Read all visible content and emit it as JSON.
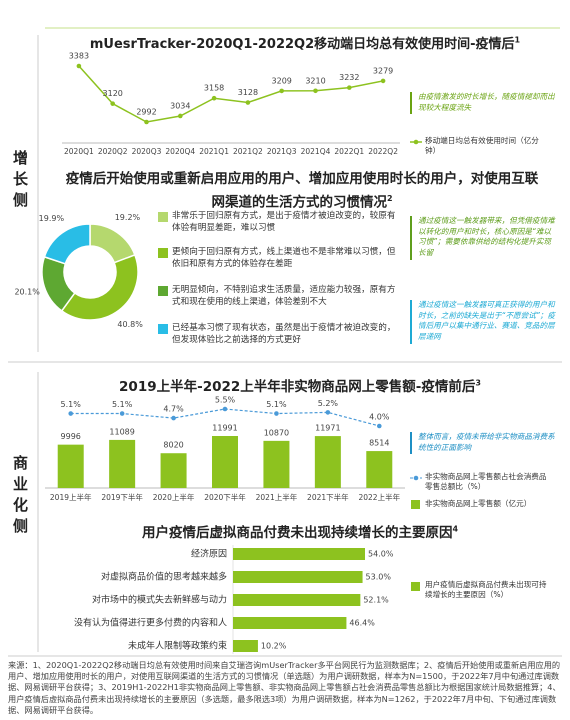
{
  "sidebar": [
    "增长侧",
    "商业化侧"
  ],
  "chart_data": [
    {
      "type": "line",
      "title": "mUesrTracker-2020Q1-2022Q2移动端日均总有效使用时间-疫情后",
      "title_note": "1",
      "categories": [
        "2020Q1",
        "2020Q2",
        "2020Q3",
        "2020Q4",
        "2021Q1",
        "2021Q2",
        "2021Q3",
        "2021Q4",
        "2022Q1",
        "2022Q2"
      ],
      "series": [
        {
          "name": "移动端日均总有效使用时间（亿分钟）",
          "color": "#8dc21f",
          "values": [
            3383,
            3120,
            2992,
            3034,
            3158,
            3128,
            3209,
            3210,
            3232,
            3279
          ]
        }
      ],
      "annotation": "由疫情激发的时长增长，随疫情褪却而出现较大程度流失"
    },
    {
      "type": "pie",
      "title": "疫情后开始使用或重新启用应用的用户、增加应用使用时长的用户，对使用互联网渠道的生活方式的习惯情况",
      "title_note": "2",
      "categories": [
        "非常乐于回归原有方式，是出于疫情才被迫改变的，较原有体验有明显差距，难以习惯",
        "更倾向于回归原有方式，线上渠道也不是非常难以习惯，但依旧和原有方式的体验存在差距",
        "无明显倾向，不特别追求生活质量，适应能力较强，原有方式和现在使用的线上渠道，体验差别不大",
        "已经基本习惯了现有状态，虽然是出于疫情才被迫改变的，但发现体验比之前选择的方式更好"
      ],
      "values": [
        19.2,
        40.8,
        20.1,
        19.9
      ],
      "value_labels": [
        "19.2%",
        "40.8%",
        "20.1%",
        "19.9%"
      ],
      "colors": [
        "#b5d86e",
        "#8dc21f",
        "#5ea832",
        "#29bde6"
      ],
      "annotations": [
        "通过疫情这一触发器带来，但凭借疫情难以转化的用户和时长，核心原因是“难以习惯”；需要依靠供给的结构化提升实现长留",
        "通过疫情这一触发器可真正获得的用户和时长，之前的缺失是出于“不愿尝试”；疫情后用户以集中通行业、赛道、竞品的层层递网"
      ]
    },
    {
      "type": "combo",
      "title": "2019上半年-2022上半年非实物商品网上零售额-疫情前后",
      "title_note": "3",
      "categories": [
        "2019上半年",
        "2019下半年",
        "2020上半年",
        "2020下半年",
        "2021上半年",
        "2021下半年",
        "2022上半年"
      ],
      "series": [
        {
          "name": "非实物商品网上零售额占社会消费品零售总额比（%）",
          "type": "line",
          "color": "#4a9ad8",
          "values": [
            5.1,
            5.1,
            4.7,
            5.5,
            5.1,
            5.2,
            4.0
          ],
          "value_labels": [
            "5.1%",
            "5.1%",
            "4.7%",
            "5.5%",
            "5.1%",
            "5.2%",
            "4.0%"
          ]
        },
        {
          "name": "非实物商品网上零售额（亿元）",
          "type": "bar",
          "color": "#8dc21f",
          "values": [
            9996,
            11089,
            8020,
            11991,
            10870,
            11971,
            8514
          ]
        }
      ],
      "annotation": "整体而言，疫情未带给非实物商品消费系统性的正面影响"
    },
    {
      "type": "hbar",
      "title": "用户疫情后虚拟商品付费未出现持续增长的主要原因",
      "title_note": "4",
      "categories": [
        "经济原因",
        "对虚拟商品价值的思考越来越多",
        "对市场中的模式失去新鲜感与动力",
        "没有认为值得进行更多付费的内容和人",
        "未成年人限制等政策约束"
      ],
      "series": [
        {
          "name": "用户疫情后虚拟商品付费未出现可持续增长的主要原因（%）",
          "color": "#8dc21f",
          "values": [
            54.0,
            53.0,
            52.1,
            46.4,
            10.2
          ],
          "value_labels": [
            "54.0%",
            "53.0%",
            "52.1%",
            "46.4%",
            "10.2%"
          ]
        }
      ]
    }
  ],
  "source": "来源：1、2020Q1-2022Q2移动端日均总有效使用时间来自艾瑞咨询mUserTracker多平台网民行为监测数据库；2、疫情后开始使用或重新启用应用的用户、增加应用使用时长的用户，对使用互联网渠道的生活方式的习惯情况（单选题）为用户调研数据，样本为N=1500，于2022年7月中旬通过库调数据、网易调研平台获得；3、2019H1-2022H1非实物商品网上零售额、非实物商品网上零售额占社会消费品零售总额比为根据国家统计局数据推算；4、用户疫情后虚拟商品付费未出现持续增长的主要原因（多选题，最多限选3项）为用户调研数据，样本为N=1262，于2022年7月中旬、下旬通过库调数据、网易调研平台获得。"
}
